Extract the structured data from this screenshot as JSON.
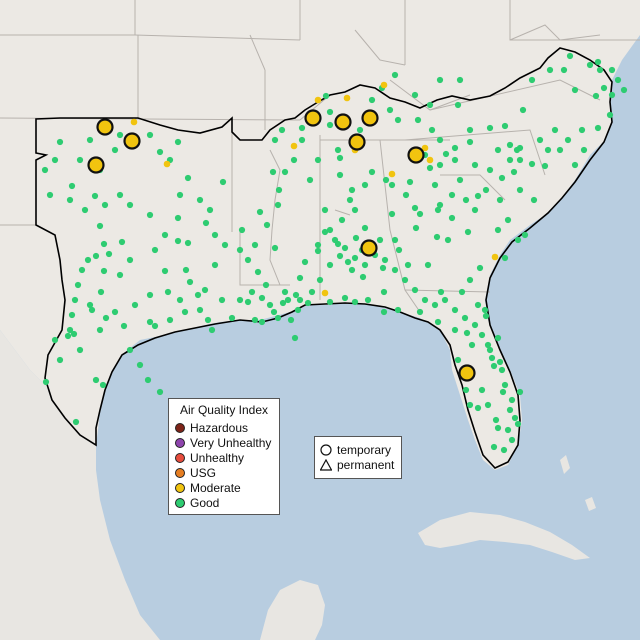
{
  "colors": {
    "water": "#b8cde0",
    "land": "#ece9e4",
    "border": "#b7b2ad",
    "region_outline": "#000000",
    "hazardous": "#7e2418",
    "very_unhealthy": "#8e44ad",
    "unhealthy": "#e74c3c",
    "usg": "#e67e22",
    "moderate": "#f1c40f",
    "good": "#2ecc71"
  },
  "legend": {
    "title": "Air Quality Index",
    "categories": [
      {
        "key": "hazardous",
        "label": "Hazardous"
      },
      {
        "key": "very_unhealthy",
        "label": "Very Unhealthy"
      },
      {
        "key": "unhealthy",
        "label": "Unhealthy"
      },
      {
        "key": "usg",
        "label": "USG"
      },
      {
        "key": "moderate",
        "label": "Moderate"
      },
      {
        "key": "good",
        "label": "Good"
      }
    ]
  },
  "monitor_legend": {
    "temporary": "temporary",
    "permanent": "permanent"
  },
  "monitors": {
    "moderate_large_count": 11,
    "moderate_small_count": 12,
    "good_count": 330
  }
}
